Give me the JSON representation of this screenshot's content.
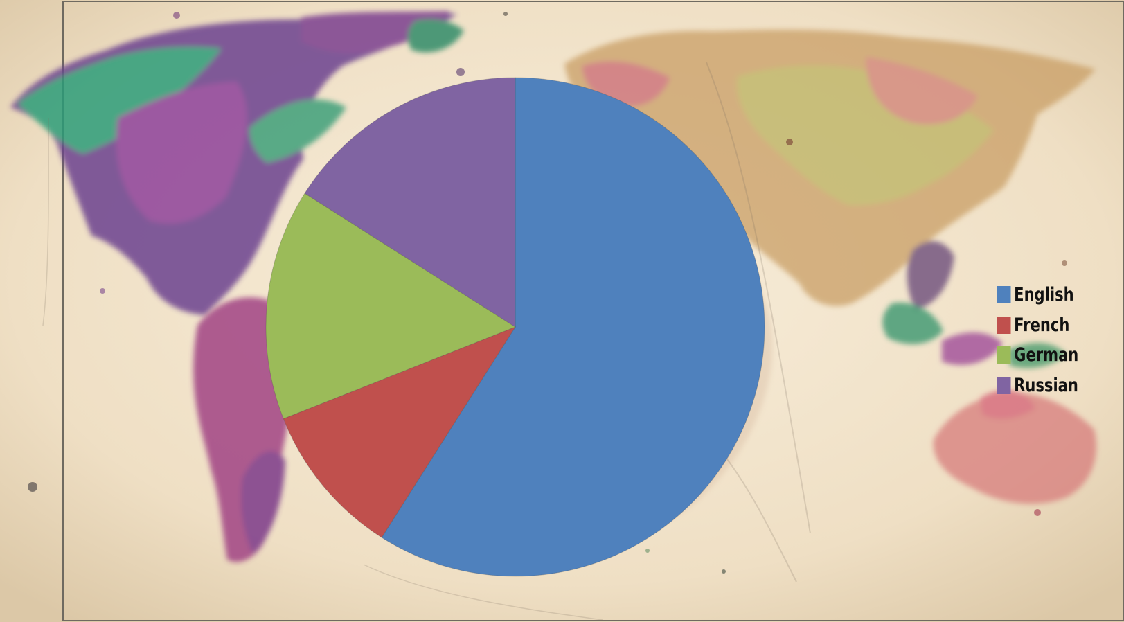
{
  "colors": {
    "background": "#f2e6cf",
    "border": "#6f6a60"
  },
  "chart_data": {
    "type": "pie",
    "title": "",
    "categories": [
      "English",
      "French",
      "German",
      "Russian"
    ],
    "values": [
      59,
      10,
      15,
      16
    ],
    "colors": [
      "#4f81bd",
      "#c0504d",
      "#9bbb59",
      "#8064a2"
    ],
    "start_angle_deg": 0,
    "direction": "clockwise",
    "legend_position": "right",
    "data_labels": false
  },
  "legend": {
    "items": [
      {
        "label": "English",
        "color": "#4f81bd"
      },
      {
        "label": "French",
        "color": "#c0504d"
      },
      {
        "label": "German",
        "color": "#9bbb59"
      },
      {
        "label": "Russian",
        "color": "#8064a2"
      }
    ]
  }
}
